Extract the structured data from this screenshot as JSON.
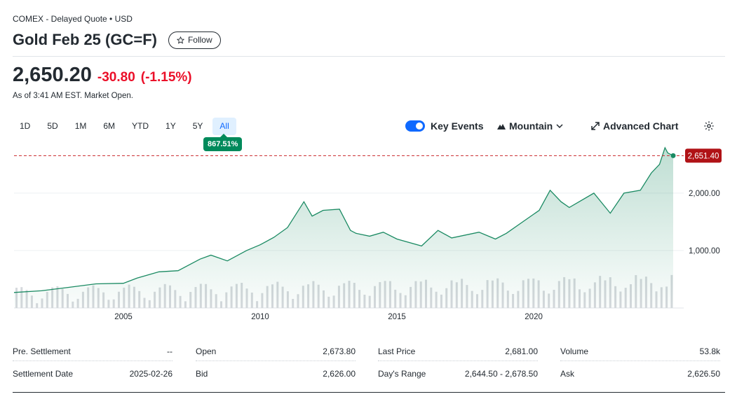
{
  "header": {
    "exchange": "COMEX - Delayed Quote • USD",
    "title": "Gold Feb 25 (GC=F)",
    "follow_label": "Follow",
    "price": "2,650.20",
    "change": "-30.80",
    "change_pct": "(-1.15%)",
    "as_of": "As of 3:41 AM EST. Market Open."
  },
  "colors": {
    "negative": "#eb0f29",
    "positive": "#008a5b",
    "accent": "#0f69ff",
    "line": "#1a8a62"
  },
  "ranges": [
    "1D",
    "5D",
    "1M",
    "6M",
    "YTD",
    "1Y",
    "5Y",
    "All"
  ],
  "active_range": "All",
  "performance_badge": "867.51%",
  "controls": {
    "key_events_label": "Key Events",
    "key_events_on": true,
    "chart_type_label": "Mountain",
    "advanced_label": "Advanced Chart",
    "icons": [
      "mountain-icon",
      "chevron-down-icon",
      "expand-icon",
      "gear-icon",
      "star-icon"
    ]
  },
  "chart_data": {
    "type": "area",
    "x_ticks": [
      "2005",
      "2010",
      "2015",
      "2020"
    ],
    "y_ticks": [
      "1,000.00",
      "2,000.00"
    ],
    "last_price_label": "2,651.40",
    "last_value": 2651.4,
    "ylim": [
      0,
      2900
    ],
    "xlim": [
      2001.0,
      2025.1
    ],
    "x": [
      2001.0,
      2002.0,
      2003.0,
      2004.0,
      2005.0,
      2005.5,
      2006.3,
      2007.0,
      2007.8,
      2008.2,
      2008.8,
      2009.5,
      2010.0,
      2010.5,
      2011.0,
      2011.6,
      2011.9,
      2012.3,
      2012.9,
      2013.3,
      2013.5,
      2014.0,
      2014.5,
      2015.0,
      2015.9,
      2016.5,
      2017.0,
      2018.0,
      2018.6,
      2019.0,
      2019.6,
      2020.2,
      2020.6,
      2021.0,
      2021.3,
      2022.2,
      2022.8,
      2023.3,
      2023.9,
      2024.3,
      2024.6,
      2024.8,
      2024.9,
      2025.1
    ],
    "y": [
      270,
      300,
      360,
      420,
      430,
      520,
      630,
      650,
      850,
      920,
      820,
      1000,
      1100,
      1230,
      1400,
      1850,
      1600,
      1700,
      1720,
      1350,
      1300,
      1250,
      1320,
      1200,
      1080,
      1350,
      1220,
      1320,
      1200,
      1300,
      1500,
      1700,
      2050,
      1850,
      1750,
      2000,
      1650,
      2000,
      2050,
      2350,
      2500,
      2790,
      2700,
      2651.4
    ]
  },
  "stats": [
    [
      {
        "label": "Pre. Settlement",
        "value": "--"
      },
      {
        "label": "Settlement Date",
        "value": "2025-02-26"
      }
    ],
    [
      {
        "label": "Open",
        "value": "2,673.80"
      },
      {
        "label": "Bid",
        "value": "2,626.00"
      }
    ],
    [
      {
        "label": "Last Price",
        "value": "2,681.00"
      },
      {
        "label": "Day's Range",
        "value": "2,644.50 - 2,678.50"
      }
    ],
    [
      {
        "label": "Volume",
        "value": "53.8k"
      },
      {
        "label": "Ask",
        "value": "2,626.50"
      }
    ]
  ]
}
